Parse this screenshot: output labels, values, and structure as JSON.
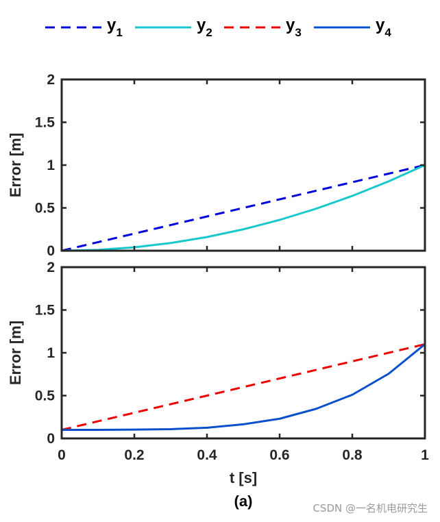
{
  "chart_data": [
    {
      "type": "line",
      "xlabel": "",
      "ylabel": "Error [m]",
      "xlim": [
        0,
        1
      ],
      "ylim": [
        0,
        2
      ],
      "yticks": [
        "0",
        "0.5",
        "1",
        "1.5",
        "2"
      ],
      "series": [
        {
          "name": "y1",
          "style": "dashed",
          "color": "#0000dd",
          "x": [
            0,
            1
          ],
          "y": [
            0,
            1
          ]
        },
        {
          "name": "y2",
          "style": "solid",
          "color": "#18c8cc",
          "x": [
            0,
            0.1,
            0.2,
            0.3,
            0.4,
            0.5,
            0.6,
            0.7,
            0.8,
            0.9,
            1.0
          ],
          "y": [
            0,
            0.01,
            0.04,
            0.09,
            0.16,
            0.25,
            0.36,
            0.49,
            0.64,
            0.81,
            1.0
          ]
        }
      ]
    },
    {
      "type": "line",
      "xlabel": "t [s]",
      "ylabel": "Error [m]",
      "xlim": [
        0,
        1
      ],
      "ylim": [
        0,
        2
      ],
      "xticks": [
        "0",
        "0.2",
        "0.4",
        "0.6",
        "0.8",
        "1"
      ],
      "yticks": [
        "0",
        "0.5",
        "1",
        "1.5",
        "2"
      ],
      "series": [
        {
          "name": "y3",
          "style": "dashed",
          "color": "#ee0000",
          "x": [
            0,
            1
          ],
          "y": [
            0.1,
            1.1
          ]
        },
        {
          "name": "y4",
          "style": "solid",
          "color": "#0a4fcc",
          "x": [
            0,
            0.1,
            0.2,
            0.3,
            0.4,
            0.5,
            0.6,
            0.7,
            0.8,
            0.9,
            1.0
          ],
          "y": [
            0.1,
            0.1,
            0.103,
            0.108,
            0.125,
            0.165,
            0.23,
            0.345,
            0.51,
            0.755,
            1.1
          ]
        }
      ]
    }
  ],
  "legend": {
    "entries": [
      {
        "base": "y",
        "sub": "1",
        "style": "dashed",
        "color": "#0000dd"
      },
      {
        "base": "y",
        "sub": "2",
        "style": "solid",
        "color": "#18c8cc"
      },
      {
        "base": "y",
        "sub": "3",
        "style": "dashed",
        "color": "#ee0000"
      },
      {
        "base": "y",
        "sub": "4",
        "style": "solid",
        "color": "#0a4fcc"
      }
    ]
  },
  "caption": "(a)",
  "watermark": "CSDN @一名机电研究生"
}
